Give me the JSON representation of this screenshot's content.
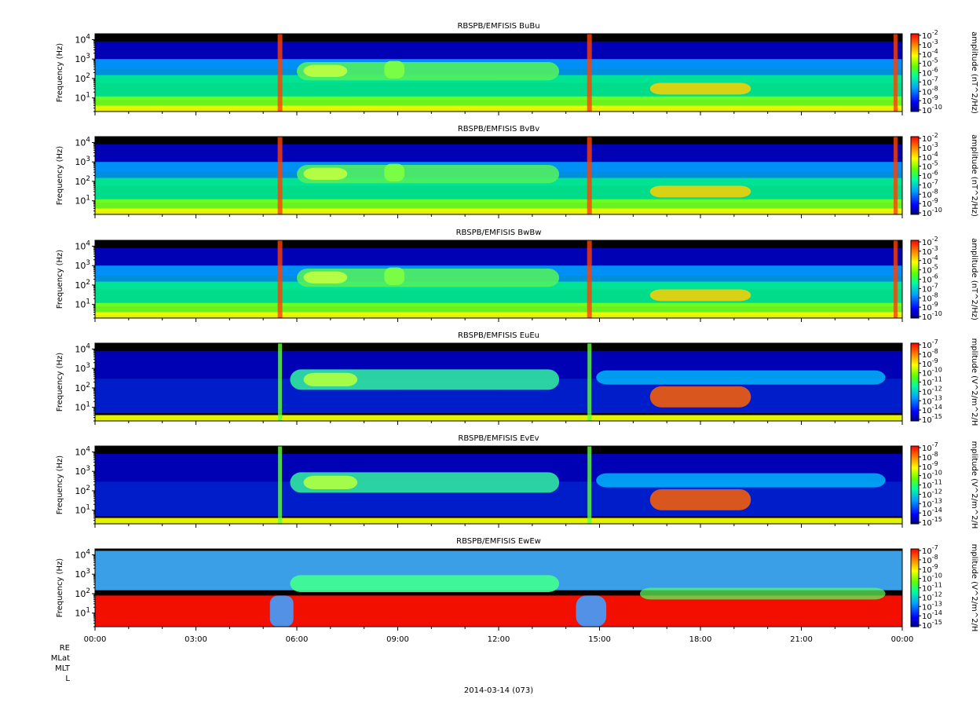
{
  "chart_data": [
    {
      "type": "heatmap",
      "title": "RBSPB/EMFISIS  BuBu",
      "ylabel": "Frequency (Hz)",
      "yscale": "log",
      "ylim": [
        2,
        20000
      ],
      "yticks": [
        "10^1",
        "10^2",
        "10^3",
        "10^4"
      ],
      "colorbar_label": "amplitude (nT^2/Hz)",
      "colorbar_ticks": [
        "10^-2",
        "10^-3",
        "10^-4",
        "10^-5",
        "10^-6",
        "10^-7",
        "10^-8",
        "10^-9",
        "10^-10"
      ],
      "kind": "B"
    },
    {
      "type": "heatmap",
      "title": "RBSPB/EMFISIS  BvBv",
      "ylabel": "Frequency (Hz)",
      "yscale": "log",
      "ylim": [
        2,
        20000
      ],
      "yticks": [
        "10^1",
        "10^2",
        "10^3",
        "10^4"
      ],
      "colorbar_label": "amplitude (nT^2/Hz)",
      "colorbar_ticks": [
        "10^-2",
        "10^-3",
        "10^-4",
        "10^-5",
        "10^-6",
        "10^-7",
        "10^-8",
        "10^-9",
        "10^-10"
      ],
      "kind": "B"
    },
    {
      "type": "heatmap",
      "title": "RBSPB/EMFISIS  BwBw",
      "ylabel": "Frequency (Hz)",
      "yscale": "log",
      "ylim": [
        2,
        20000
      ],
      "yticks": [
        "10^1",
        "10^2",
        "10^3",
        "10^4"
      ],
      "colorbar_label": "amplitude (nT^2/Hz)",
      "colorbar_ticks": [
        "10^-2",
        "10^-3",
        "10^-4",
        "10^-5",
        "10^-6",
        "10^-7",
        "10^-8",
        "10^-9",
        "10^-10"
      ],
      "kind": "B"
    },
    {
      "type": "heatmap",
      "title": "RBSPB/EMFISIS  EuEu",
      "ylabel": "Frequency (Hz)",
      "yscale": "log",
      "ylim": [
        2,
        20000
      ],
      "yticks": [
        "10^1",
        "10^2",
        "10^3",
        "10^4"
      ],
      "colorbar_label": "mplitude (V^2/m^2/H",
      "colorbar_ticks": [
        "10^-7",
        "10^-8",
        "10^-9",
        "10^-10",
        "10^-11",
        "10^-12",
        "10^-13",
        "10^-14",
        "10^-15"
      ],
      "kind": "E"
    },
    {
      "type": "heatmap",
      "title": "RBSPB/EMFISIS  EvEv",
      "ylabel": "Frequency (Hz)",
      "yscale": "log",
      "ylim": [
        2,
        20000
      ],
      "yticks": [
        "10^1",
        "10^2",
        "10^3",
        "10^4"
      ],
      "colorbar_label": "mplitude (V^2/m^2/H",
      "colorbar_ticks": [
        "10^-7",
        "10^-8",
        "10^-9",
        "10^-10",
        "10^-11",
        "10^-12",
        "10^-13",
        "10^-14",
        "10^-15"
      ],
      "kind": "E"
    },
    {
      "type": "heatmap",
      "title": "RBSPB/EMFISIS  EwEw",
      "ylabel": "Frequency (Hz)",
      "yscale": "log",
      "ylim": [
        2,
        20000
      ],
      "yticks": [
        "10^1",
        "10^2",
        "10^3",
        "10^4"
      ],
      "colorbar_label": "mplitude (V^2/m^2/H",
      "colorbar_ticks": [
        "10^-7",
        "10^-8",
        "10^-9",
        "10^-10",
        "10^-11",
        "10^-12",
        "10^-13",
        "10^-14",
        "10^-15"
      ],
      "kind": "Ew"
    }
  ],
  "x_axis": {
    "ticks": [
      "00:00",
      "03:00",
      "06:00",
      "09:00",
      "12:00",
      "15:00",
      "18:00",
      "21:00",
      "00:00"
    ],
    "range_hours": [
      0,
      24
    ]
  },
  "ephemeris_labels": [
    "RE",
    "MLat",
    "MLT",
    "L"
  ],
  "date_label": "2014-03-14 (073)",
  "colors": {
    "background_sky": "#000000",
    "colormap": [
      "#0000a0",
      "#0000ff",
      "#00c8ff",
      "#00ff80",
      "#80ff00",
      "#ffff00",
      "#ff8000",
      "#ff0000"
    ]
  }
}
